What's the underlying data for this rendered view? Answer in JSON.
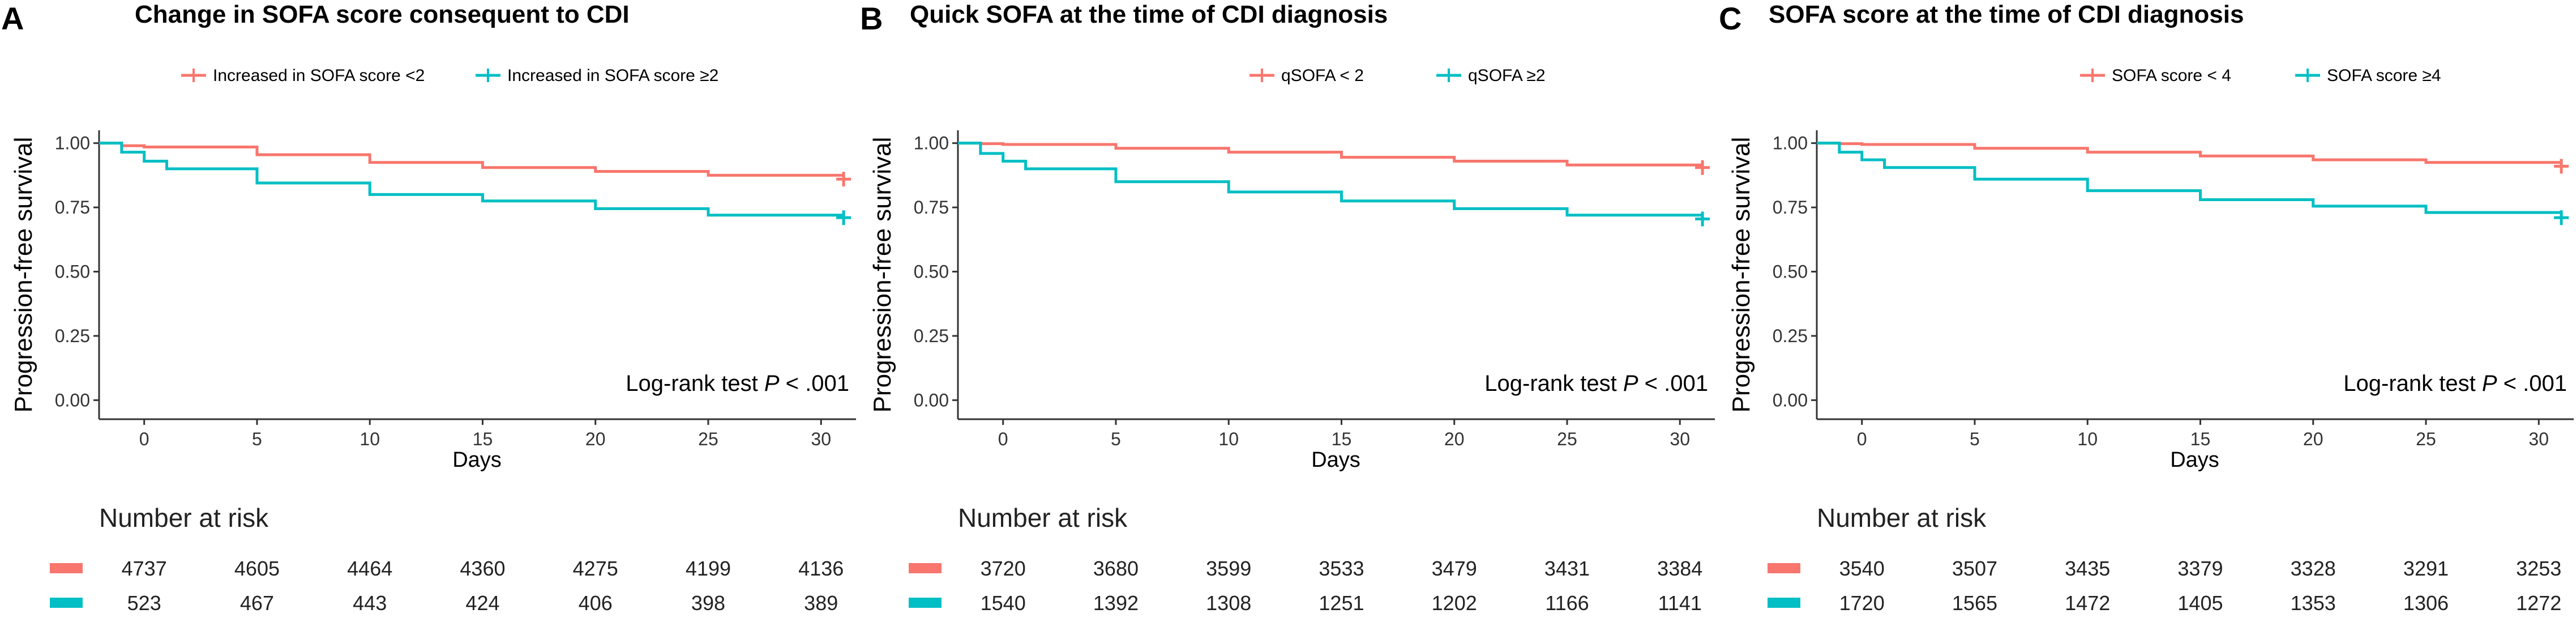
{
  "panels": [
    {
      "letter": "A",
      "title": "Change in SOFA score consequent to CDI",
      "legend": [
        "Increased in SOFA score <2",
        "Increased in SOFA score ≥2"
      ],
      "ylabel": "Progression-free survival",
      "xlabel": "Days",
      "logrank_prefix": "Log-rank test ",
      "logrank_p": "P",
      "logrank_suffix": " < .001",
      "risk_title": "Number at risk",
      "risk": [
        [
          "4737",
          "4605",
          "4464",
          "4360",
          "4275",
          "4199",
          "4136"
        ],
        [
          "523",
          "467",
          "443",
          "424",
          "406",
          "398",
          "389"
        ]
      ]
    },
    {
      "letter": "B",
      "title": "Quick SOFA at the time of CDI diagnosis",
      "legend": [
        "qSOFA < 2",
        "qSOFA ≥2"
      ],
      "ylabel": "Progression-free survival",
      "xlabel": "Days",
      "logrank_prefix": "Log-rank test ",
      "logrank_p": "P",
      "logrank_suffix": " < .001",
      "risk_title": "Number at risk",
      "risk": [
        [
          "3720",
          "3680",
          "3599",
          "3533",
          "3479",
          "3431",
          "3384"
        ],
        [
          "1540",
          "1392",
          "1308",
          "1251",
          "1202",
          "1166",
          "1141"
        ]
      ]
    },
    {
      "letter": "C",
      "title": "SOFA score at the time of CDI diagnosis",
      "legend": [
        "SOFA score < 4",
        "SOFA score ≥4"
      ],
      "ylabel": "Progression-free survival",
      "xlabel": "Days",
      "logrank_prefix": "Log-rank test ",
      "logrank_p": "P",
      "logrank_suffix": " < .001",
      "risk_title": "Number at risk",
      "risk": [
        [
          "3540",
          "3507",
          "3435",
          "3379",
          "3328",
          "3291",
          "3253"
        ],
        [
          "1720",
          "1565",
          "1472",
          "1405",
          "1353",
          "1306",
          "1272"
        ]
      ]
    }
  ],
  "colors": {
    "series1": "#F8766D",
    "series2": "#00BFC4",
    "axis": "#333333",
    "text": "#000000"
  },
  "chart_data": [
    {
      "type": "line",
      "title": "Change in SOFA score consequent to CDI",
      "xlabel": "Days",
      "ylabel": "Progression-free survival",
      "xlim": [
        -2,
        31.5
      ],
      "ylim": [
        -0.03,
        1.05
      ],
      "xticks": [
        0,
        5,
        10,
        15,
        20,
        25,
        30
      ],
      "yticks": [
        0.0,
        0.25,
        0.5,
        0.75,
        1.0
      ],
      "ytick_labels": [
        "0.00",
        "0.25",
        "0.50",
        "0.75",
        "1.00"
      ],
      "series": [
        {
          "name": "Increased in SOFA score <2",
          "x": [
            -2,
            -1,
            0,
            5,
            10,
            15,
            20,
            25,
            31
          ],
          "y": [
            1.0,
            0.99,
            0.985,
            0.955,
            0.925,
            0.905,
            0.89,
            0.875,
            0.86
          ]
        },
        {
          "name": "Increased in SOFA score ≥2",
          "x": [
            -2,
            -1,
            0,
            1,
            5,
            10,
            15,
            20,
            25,
            31
          ],
          "y": [
            1.0,
            0.965,
            0.93,
            0.9,
            0.845,
            0.8,
            0.775,
            0.745,
            0.72,
            0.71
          ]
        }
      ]
    },
    {
      "type": "line",
      "title": "Quick SOFA at the time of CDI diagnosis",
      "xlabel": "Days",
      "ylabel": "Progression-free survival",
      "xlim": [
        -2,
        31.5
      ],
      "ylim": [
        -0.03,
        1.05
      ],
      "xticks": [
        0,
        5,
        10,
        15,
        20,
        25,
        30
      ],
      "yticks": [
        0.0,
        0.25,
        0.5,
        0.75,
        1.0
      ],
      "ytick_labels": [
        "0.00",
        "0.25",
        "0.50",
        "0.75",
        "1.00"
      ],
      "series": [
        {
          "name": "qSOFA < 2",
          "x": [
            -2,
            -1,
            0,
            5,
            10,
            15,
            20,
            25,
            31
          ],
          "y": [
            1.0,
            0.998,
            0.995,
            0.98,
            0.965,
            0.945,
            0.93,
            0.915,
            0.905
          ]
        },
        {
          "name": "qSOFA ≥2",
          "x": [
            -2,
            -1,
            0,
            1,
            5,
            10,
            15,
            20,
            25,
            31
          ],
          "y": [
            1.0,
            0.96,
            0.93,
            0.9,
            0.85,
            0.81,
            0.775,
            0.745,
            0.72,
            0.705
          ]
        }
      ]
    },
    {
      "type": "line",
      "title": "SOFA score at the time of CDI diagnosis",
      "xlabel": "Days",
      "ylabel": "Progression-free survival",
      "xlim": [
        -2,
        31.5
      ],
      "ylim": [
        -0.03,
        1.05
      ],
      "xticks": [
        0,
        5,
        10,
        15,
        20,
        25,
        30
      ],
      "yticks": [
        0.0,
        0.25,
        0.5,
        0.75,
        1.0
      ],
      "ytick_labels": [
        "0.00",
        "0.25",
        "0.50",
        "0.75",
        "1.00"
      ],
      "series": [
        {
          "name": "SOFA score < 4",
          "x": [
            -2,
            -1,
            0,
            5,
            10,
            15,
            20,
            25,
            31
          ],
          "y": [
            1.0,
            0.998,
            0.995,
            0.98,
            0.965,
            0.95,
            0.935,
            0.925,
            0.91
          ]
        },
        {
          "name": "SOFA score ≥4",
          "x": [
            -2,
            -1,
            0,
            1,
            5,
            10,
            15,
            20,
            25,
            31
          ],
          "y": [
            1.0,
            0.965,
            0.935,
            0.905,
            0.86,
            0.815,
            0.78,
            0.755,
            0.73,
            0.71
          ]
        }
      ]
    }
  ]
}
